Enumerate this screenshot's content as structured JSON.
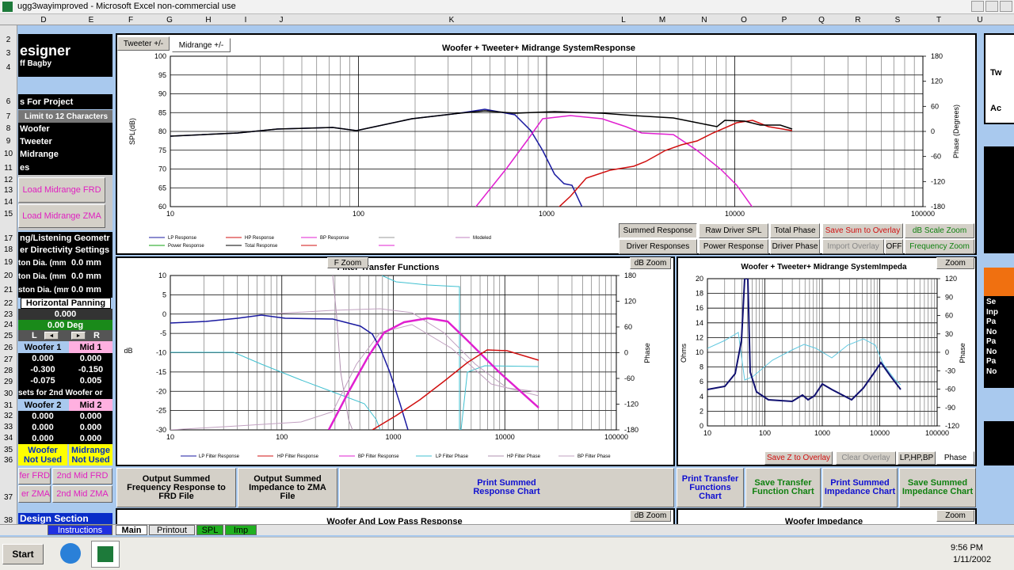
{
  "window": {
    "title": "ugg3wayimproved - Microsoft Excel non-commercial use"
  },
  "columns": [
    "D",
    "E",
    "F",
    "G",
    "H",
    "I",
    "J",
    "K",
    "L",
    "M",
    "N",
    "O",
    "P",
    "Q",
    "R",
    "S",
    "T",
    "U"
  ],
  "rows": [
    "2",
    "3",
    "4",
    "6",
    "7",
    "8",
    "9",
    "10",
    "11",
    "12",
    "13",
    "14",
    "15",
    "17",
    "18",
    "19",
    "20",
    "21",
    "22",
    "23",
    "24",
    "25",
    "26",
    "27",
    "28",
    "29",
    "30",
    "31",
    "32",
    "33",
    "34",
    "35",
    "36",
    "37",
    "38"
  ],
  "left_panel": {
    "title": "esigner",
    "author": "ff Bagby",
    "project_header": "s For Project",
    "limit": "Limit to 12 Characters",
    "drivers": [
      "Woofer",
      "Tweeter",
      "Midrange"
    ],
    "files_header": "es",
    "load_frd": "Load Midrange FRD",
    "load_zma": "Load Midrange ZMA",
    "geometry": "ng/Listening Geometr",
    "directivity": "er Directivity Settings",
    "piston": [
      {
        "label": "ton Dia. (mm",
        "value": "0.0 mm"
      },
      {
        "label": "ton Dia. (mm",
        "value": "0.0 mm"
      },
      {
        "label": "ston Dia. (mm",
        "value": "0.0 mm"
      }
    ],
    "panning": "Horizontal Panning",
    "pan_value": "0.000",
    "pan_deg": "0.00 Deg",
    "left": "L",
    "right": "R",
    "woofer1": "Woofer 1",
    "mid1": "Mid 1",
    "table1": [
      [
        "0.000",
        "0.000"
      ],
      [
        "-0.300",
        "-0.150"
      ],
      [
        "-0.075",
        "0.005"
      ]
    ],
    "second": "sets for 2nd Woofer or",
    "woofer2": "Woofer 2",
    "mid2": "Mid 2",
    "table2": [
      [
        "0.000",
        "0.000"
      ],
      [
        "0.000",
        "0.000"
      ],
      [
        "0.000",
        "0.000"
      ]
    ],
    "woofer_not_used": [
      "Woofer",
      "Not Used"
    ],
    "mid_not_used": [
      "Midrange",
      "Not Used"
    ],
    "frd_buttons": [
      "fer FRD",
      "2nd Mid FRD"
    ],
    "zma_buttons": [
      "er ZMA",
      "2nd Mid ZMA"
    ],
    "design": "Design Section"
  },
  "charts": {
    "system_response": {
      "tabs": [
        "Tweeter +/-",
        "Midrange +/-"
      ],
      "title": "Woofer + Tweeter+ Midrange  SystemResponse",
      "ylabel": "SPL(dB)",
      "y2label": "Phase (Degrees)",
      "xlim": [
        10,
        100000
      ],
      "xticks": [
        10,
        100,
        1000,
        10000,
        100000
      ],
      "ylim": [
        60,
        100
      ],
      "yticks": [
        60,
        65,
        70,
        75,
        80,
        85,
        90,
        95,
        100
      ],
      "y2lim": [
        -180,
        180
      ],
      "y2ticks": [
        -180,
        -120,
        -60,
        0,
        60,
        120,
        180
      ],
      "legend": [
        "LP Response",
        "HP Response",
        "BP Response",
        "Modeled",
        "Power Response",
        "Total Response"
      ],
      "buttons": [
        "Summed Response",
        "Raw Driver SPL",
        "Total Phase",
        "Save Sum to Overlay",
        "dB Scale Zoom",
        "Driver Responses",
        "Power Response",
        "Driver Phase",
        "Import Overlay",
        "OFF",
        "Frequency Zoom"
      ]
    },
    "filter": {
      "title": "Filter Transfer Functions",
      "f_zoom": "F Zoom",
      "db_zoom": "dB Zoom",
      "ylabel": "dB",
      "y2label": "Phase",
      "xlim": [
        10,
        100000
      ],
      "xticks": [
        10,
        100,
        1000,
        10000,
        100000
      ],
      "ylim": [
        -30,
        10
      ],
      "yticks": [
        -30,
        -25,
        -20,
        -15,
        -10,
        -5,
        0,
        5,
        10
      ],
      "y2lim": [
        -180,
        180
      ],
      "y2ticks": [
        -180,
        -120,
        -60,
        0,
        60,
        120,
        180
      ],
      "legend": [
        "LP Filter Response",
        "HP Filter Response",
        "BP Filter Response",
        "LP Filter Phase",
        "HP Filter Phase",
        "BP Filter Phase"
      ]
    },
    "impedance": {
      "title": "Woofer + Tweeter+ Midrange  SystemImpeda",
      "zoom": "Zoom",
      "ylabel": "Ohms",
      "y2label": "Phase",
      "xlim": [
        10,
        100000
      ],
      "xticks": [
        10,
        100,
        1000,
        10000,
        100000
      ],
      "ylim": [
        0,
        20
      ],
      "yticks": [
        0,
        2,
        4,
        6,
        8,
        10,
        12,
        14,
        16,
        18,
        20
      ],
      "y2lim": [
        -120,
        120
      ],
      "y2ticks": [
        -120,
        -90,
        -60,
        -30,
        0,
        30,
        60,
        90,
        120
      ],
      "buttons": [
        "Save Z to Overlay",
        "Clear Overlay",
        "LP,HP,BP",
        "Phase"
      ]
    }
  },
  "action_buttons": [
    "Output Summed Frequency Response to FRD File",
    "Output Summed Impedance to ZMA File",
    "Print Summed Response Chart",
    "Print Transfer Functions Chart",
    "Save Transfer Function Chart",
    "Print Summed Impedance Chart",
    "Save Summed Impedance Chart"
  ],
  "lower_charts": {
    "woofer_title": "Woofer And Low Pass Response",
    "db_zoom": "dB Zoom",
    "impedance_title": "Woofer Impedance",
    "zoom": "Zoom"
  },
  "right_edge": [
    "Tw",
    "Ac",
    "Se",
    "Inp",
    "Pa",
    "No",
    "Pa",
    "No",
    "Pa",
    "No"
  ],
  "sheet_tabs": [
    "Instructions",
    "Main",
    "Printout",
    "SPL",
    "Imp"
  ],
  "taskbar": {
    "start": "Start",
    "time": "9:56 PM",
    "date": "1/11/2002"
  }
}
